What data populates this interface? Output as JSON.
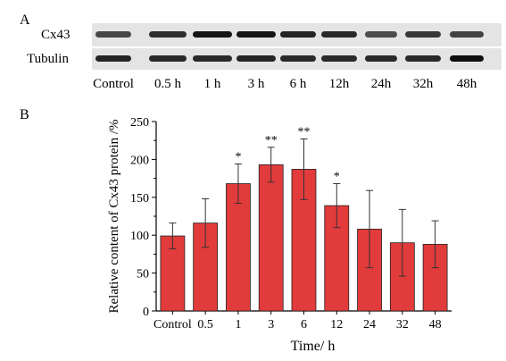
{
  "panels": {
    "a": "A",
    "b": "B"
  },
  "blot": {
    "rows": [
      {
        "label": "Cx43",
        "intensity": [
          0.72,
          0.82,
          0.92,
          0.92,
          0.86,
          0.84,
          0.7,
          0.78,
          0.74
        ]
      },
      {
        "label": "Tubulin",
        "intensity": [
          0.86,
          0.84,
          0.84,
          0.86,
          0.84,
          0.84,
          0.84,
          0.84,
          0.94
        ]
      }
    ],
    "lanes": [
      "Control",
      "0.5 h",
      "1 h",
      "3 h",
      "6 h",
      "12h",
      "24h",
      "32h",
      "48h"
    ],
    "strip_color": "#e4e4e4"
  },
  "chart_data": {
    "type": "bar",
    "categories": [
      "Control",
      "0.5",
      "1",
      "3",
      "6",
      "12",
      "24",
      "32",
      "48"
    ],
    "values": [
      99,
      116,
      168,
      193,
      187,
      139,
      108,
      90,
      88
    ],
    "errors": [
      17,
      32,
      26,
      23,
      40,
      29,
      51,
      44,
      31
    ],
    "significance": [
      "",
      "",
      "*",
      "**",
      "**",
      "*",
      "",
      "",
      ""
    ],
    "xlabel": "Time/ h",
    "ylabel": "Relative content of Cx43 protein /%",
    "ylim": [
      0,
      250
    ],
    "yticks": [
      0,
      50,
      100,
      150,
      200,
      250
    ],
    "bar_color": "#e23b3b",
    "grid": false
  }
}
